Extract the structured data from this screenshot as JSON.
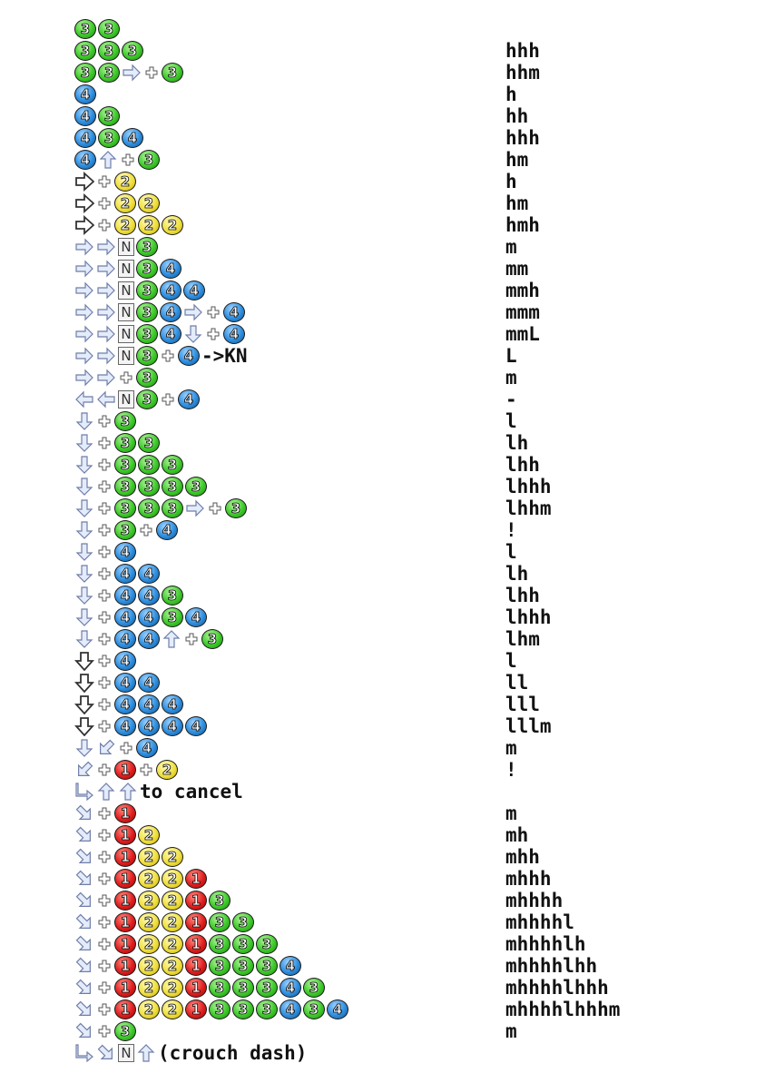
{
  "rows": [
    {
      "top": 20,
      "cmd": [
        "3",
        "3"
      ],
      "level": ""
    },
    {
      "top": 44,
      "cmd": [
        "3",
        "3",
        "3"
      ],
      "level": "hhh"
    },
    {
      "top": 68,
      "cmd": [
        "3",
        "3",
        "F",
        "+",
        "3"
      ],
      "level": "hhm"
    },
    {
      "top": 92,
      "cmd": [
        "4"
      ],
      "level": "h"
    },
    {
      "top": 116,
      "cmd": [
        "4",
        "3"
      ],
      "level": "hh"
    },
    {
      "top": 140,
      "cmd": [
        "4",
        "3",
        "4"
      ],
      "level": "hhh"
    },
    {
      "top": 164,
      "cmd": [
        "4",
        "U",
        "+",
        "3"
      ],
      "level": "hm"
    },
    {
      "top": 188,
      "cmd": [
        "HF",
        "+",
        "2"
      ],
      "level": "h"
    },
    {
      "top": 212,
      "cmd": [
        "HF",
        "+",
        "2",
        "2"
      ],
      "level": "hm"
    },
    {
      "top": 236,
      "cmd": [
        "HF",
        "+",
        "2",
        "2",
        "2"
      ],
      "level": "hmh"
    },
    {
      "top": 260,
      "cmd": [
        "F",
        "F",
        "N",
        "3"
      ],
      "level": "m"
    },
    {
      "top": 284,
      "cmd": [
        "F",
        "F",
        "N",
        "3",
        "4"
      ],
      "level": "mm"
    },
    {
      "top": 308,
      "cmd": [
        "F",
        "F",
        "N",
        "3",
        "4",
        "4"
      ],
      "level": "mmh"
    },
    {
      "top": 332,
      "cmd": [
        "F",
        "F",
        "N",
        "3",
        "4",
        "F",
        "+",
        "4"
      ],
      "level": "mmm"
    },
    {
      "top": 356,
      "cmd": [
        "F",
        "F",
        "N",
        "3",
        "4",
        "D",
        "+",
        "4"
      ],
      "level": "mmL"
    },
    {
      "top": 380,
      "cmd": [
        "F",
        "F",
        "N",
        "3",
        "+",
        "4",
        "T:->KN"
      ],
      "level": "L"
    },
    {
      "top": 404,
      "cmd": [
        "F",
        "F",
        "+",
        "3"
      ],
      "level": "m"
    },
    {
      "top": 428,
      "cmd": [
        "B",
        "B",
        "N",
        "3",
        "+",
        "4"
      ],
      "level": "-"
    },
    {
      "top": 452,
      "cmd": [
        "D",
        "+",
        "3"
      ],
      "level": "l"
    },
    {
      "top": 476,
      "cmd": [
        "D",
        "+",
        "3",
        "3"
      ],
      "level": "lh"
    },
    {
      "top": 500,
      "cmd": [
        "D",
        "+",
        "3",
        "3",
        "3"
      ],
      "level": "lhh"
    },
    {
      "top": 524,
      "cmd": [
        "D",
        "+",
        "3",
        "3",
        "3",
        "3"
      ],
      "level": "lhhh"
    },
    {
      "top": 548,
      "cmd": [
        "D",
        "+",
        "3",
        "3",
        "3",
        "F",
        "+",
        "3"
      ],
      "level": "lhhm"
    },
    {
      "top": 572,
      "cmd": [
        "D",
        "+",
        "3",
        "+",
        "4"
      ],
      "level": "!"
    },
    {
      "top": 596,
      "cmd": [
        "D",
        "+",
        "4"
      ],
      "level": "l"
    },
    {
      "top": 620,
      "cmd": [
        "D",
        "+",
        "4",
        "4"
      ],
      "level": "lh"
    },
    {
      "top": 644,
      "cmd": [
        "D",
        "+",
        "4",
        "4",
        "3"
      ],
      "level": "lhh"
    },
    {
      "top": 668,
      "cmd": [
        "D",
        "+",
        "4",
        "4",
        "3",
        "4"
      ],
      "level": "lhhh"
    },
    {
      "top": 692,
      "cmd": [
        "D",
        "+",
        "4",
        "4",
        "U",
        "+",
        "3"
      ],
      "level": "lhm"
    },
    {
      "top": 716,
      "cmd": [
        "HD",
        "+",
        "4"
      ],
      "level": "l"
    },
    {
      "top": 740,
      "cmd": [
        "HD",
        "+",
        "4",
        "4"
      ],
      "level": "ll"
    },
    {
      "top": 764,
      "cmd": [
        "HD",
        "+",
        "4",
        "4",
        "4"
      ],
      "level": "lll"
    },
    {
      "top": 788,
      "cmd": [
        "HD",
        "+",
        "4",
        "4",
        "4",
        "4"
      ],
      "level": "lllm"
    },
    {
      "top": 812,
      "cmd": [
        "D",
        "DB",
        "+",
        "4"
      ],
      "level": "m"
    },
    {
      "top": 836,
      "cmd": [
        "DB",
        "+",
        "1",
        "+",
        "2"
      ],
      "level": "!"
    },
    {
      "top": 860,
      "cmd": [
        "R",
        "U",
        "U",
        "T:to cancel"
      ],
      "level": ""
    },
    {
      "top": 884,
      "cmd": [
        "DF",
        "+",
        "1"
      ],
      "level": "m"
    },
    {
      "top": 908,
      "cmd": [
        "DF",
        "+",
        "1",
        "2"
      ],
      "level": "mh"
    },
    {
      "top": 932,
      "cmd": [
        "DF",
        "+",
        "1",
        "2",
        "2"
      ],
      "level": "mhh"
    },
    {
      "top": 956,
      "cmd": [
        "DF",
        "+",
        "1",
        "2",
        "2",
        "1"
      ],
      "level": "mhhh"
    },
    {
      "top": 980,
      "cmd": [
        "DF",
        "+",
        "1",
        "2",
        "2",
        "1",
        "3"
      ],
      "level": "mhhhh"
    },
    {
      "top": 1004,
      "cmd": [
        "DF",
        "+",
        "1",
        "2",
        "2",
        "1",
        "3",
        "3"
      ],
      "level": "mhhhhl"
    },
    {
      "top": 1028,
      "cmd": [
        "DF",
        "+",
        "1",
        "2",
        "2",
        "1",
        "3",
        "3",
        "3"
      ],
      "level": "mhhhhlh"
    },
    {
      "top": 1052,
      "cmd": [
        "DF",
        "+",
        "1",
        "2",
        "2",
        "1",
        "3",
        "3",
        "3",
        "4"
      ],
      "level": "mhhhhlhh"
    },
    {
      "top": 1076,
      "cmd": [
        "DF",
        "+",
        "1",
        "2",
        "2",
        "1",
        "3",
        "3",
        "3",
        "4",
        "3"
      ],
      "level": "mhhhhlhhh"
    },
    {
      "top": 1100,
      "cmd": [
        "DF",
        "+",
        "1",
        "2",
        "2",
        "1",
        "3",
        "3",
        "3",
        "4",
        "3",
        "4"
      ],
      "level": "mhhhhlhhhm"
    },
    {
      "top": 1124,
      "cmd": [
        "DF",
        "+",
        "3"
      ],
      "level": "m"
    },
    {
      "top": 1148,
      "cmd": [
        "R",
        "DF",
        "N",
        "U",
        "T:(crouch dash)"
      ],
      "level": ""
    }
  ]
}
